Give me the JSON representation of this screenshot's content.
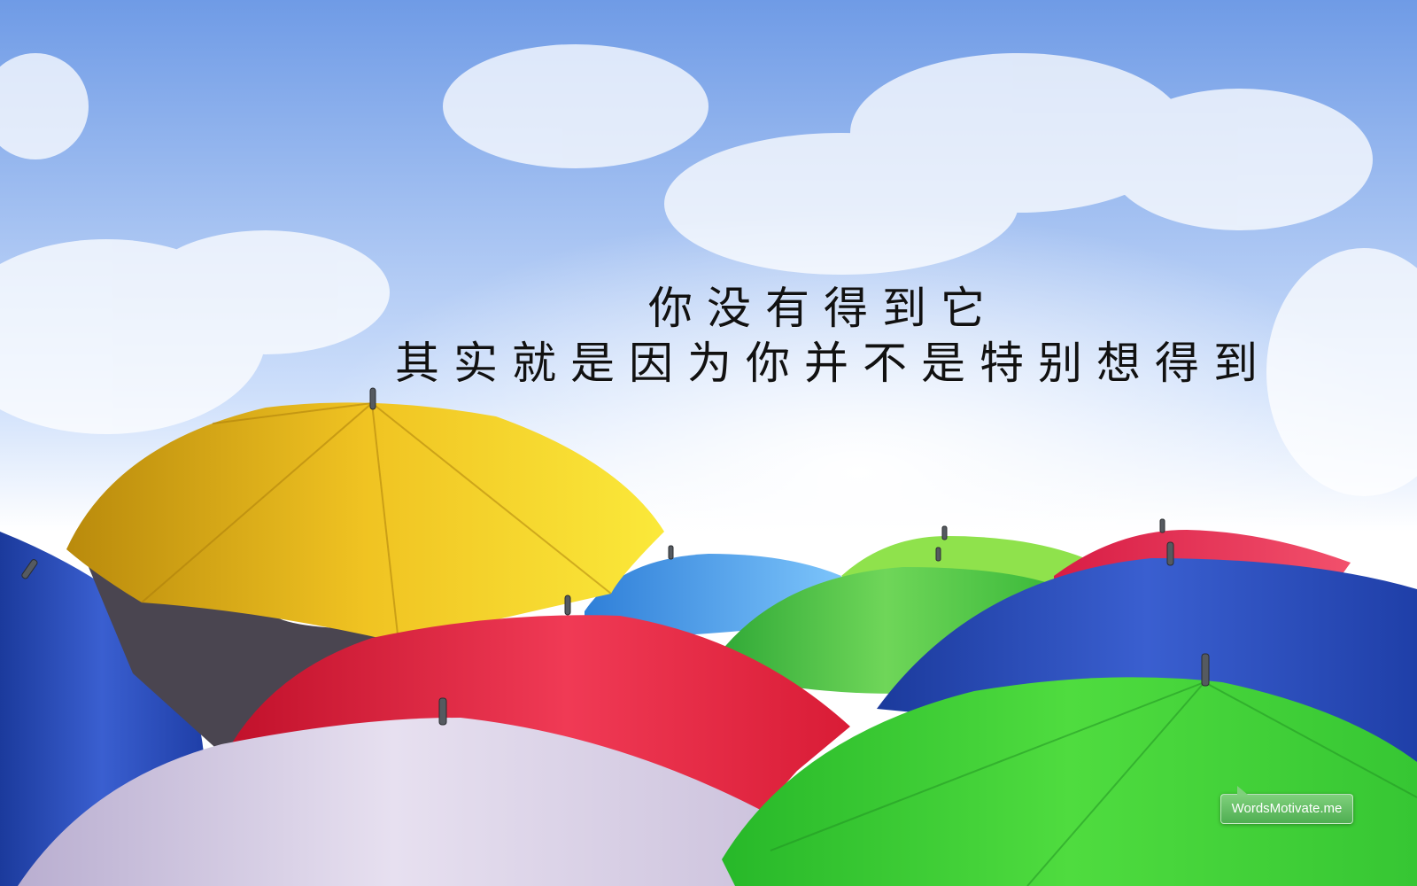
{
  "quote": {
    "line1": "你没有得到它",
    "line2": "其实就是因为你并不是特别想得到"
  },
  "watermark": {
    "text": "WordsMotivate.me"
  },
  "colors": {
    "sky_top": "#6f9be6",
    "sky_bottom": "#ffffff",
    "yellow_umbrella": "#f2c81e",
    "red_umbrella": "#e8283f",
    "green_umbrella": "#3fd23a",
    "blue_umbrella": "#2a4db8",
    "light_blue_umbrella": "#4aa3f0",
    "lavender_umbrella": "#cfc5de",
    "badge_green": "#5cbb5c"
  }
}
